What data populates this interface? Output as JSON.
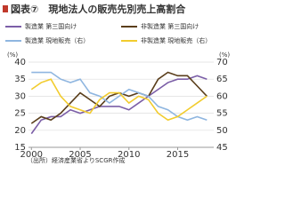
{
  "chart_data": {
    "type": "line",
    "title": "図表⑦　現地法人の販売先別売上高割合",
    "y_label": "(%)",
    "y2_label": "(%)",
    "source": "（出所）経済産業省よりSCGR作成",
    "x": [
      2000,
      2001,
      2002,
      2003,
      2004,
      2005,
      2006,
      2007,
      2008,
      2009,
      2010,
      2011,
      2012,
      2013,
      2014,
      2015,
      2016,
      2017,
      2018
    ],
    "xlim": [
      1999.7,
      2018.7
    ],
    "xticks": [
      2000,
      2005,
      2010,
      2015
    ],
    "ylim": [
      15,
      40
    ],
    "yticks": [
      15,
      20,
      25,
      30,
      35,
      40
    ],
    "y2lim": [
      45,
      70
    ],
    "y2ticks": [
      45,
      50,
      55,
      60,
      65,
      70
    ],
    "grid": true,
    "series": [
      {
        "name": "製造業 第三国向け",
        "color": "#7b5ea7",
        "values": [
          19,
          23,
          24,
          24,
          26,
          25,
          26,
          27,
          27,
          27,
          26,
          28,
          30,
          32,
          34,
          35,
          35,
          36,
          35
        ]
      },
      {
        "name": "非製造業 第三国向け",
        "color": "#5a3e1b",
        "values": [
          22,
          24,
          23,
          25,
          28,
          31,
          29,
          27,
          30,
          31,
          30,
          31,
          30,
          35,
          37,
          36,
          36,
          33,
          30
        ]
      },
      {
        "name": "製造業 現地販売（右）",
        "color": "#8fb6e0",
        "axis": "y2",
        "values": [
          67,
          67,
          67,
          65,
          64,
          65,
          61,
          60,
          58,
          60,
          62,
          61,
          60,
          57,
          56,
          54,
          53,
          54,
          53
        ]
      },
      {
        "name": "非製造業 現地販売（右）",
        "color": "#f2cc2e",
        "axis": "y2",
        "values": [
          62,
          64,
          65,
          60,
          57,
          56,
          55,
          59,
          61,
          61,
          58,
          60,
          59,
          55,
          53,
          54,
          56,
          58,
          60
        ]
      }
    ]
  }
}
